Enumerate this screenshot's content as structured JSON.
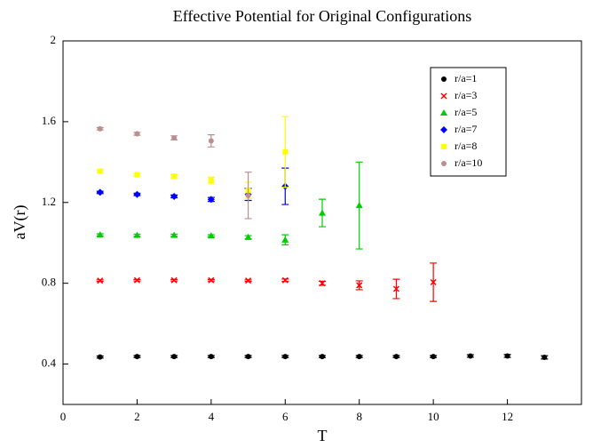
{
  "chart_data": {
    "type": "scatter",
    "title": "Effective Potential for Original Configurations",
    "x_label": "T",
    "y_label": "aV(r)",
    "xlim": [
      0,
      14
    ],
    "xticks": [
      0,
      2,
      4,
      6,
      8,
      10,
      12
    ],
    "ylim": [
      0.2,
      2
    ],
    "yticks": [
      0.4,
      0.8,
      1.2,
      1.6,
      2
    ],
    "legend_position": "upper right",
    "series": [
      {
        "name": "r/a=1",
        "color": "#000000",
        "marker": "circle",
        "x": [
          1,
          2,
          3,
          4,
          5,
          6,
          7,
          8,
          9,
          10,
          11,
          12,
          13
        ],
        "values": [
          0.435,
          0.437,
          0.437,
          0.437,
          0.437,
          0.437,
          0.437,
          0.437,
          0.437,
          0.437,
          0.44,
          0.44,
          0.433
        ],
        "errors": [
          0.005,
          0.005,
          0.005,
          0.005,
          0.005,
          0.005,
          0.005,
          0.005,
          0.005,
          0.005,
          0.006,
          0.007,
          0.008
        ]
      },
      {
        "name": "r/a=3",
        "color": "#ff0000",
        "marker": "x",
        "x": [
          1,
          2,
          3,
          4,
          5,
          6,
          7,
          8,
          9,
          10
        ],
        "values": [
          0.813,
          0.815,
          0.815,
          0.815,
          0.813,
          0.815,
          0.8,
          0.79,
          0.772,
          0.805
        ],
        "errors": [
          0.004,
          0.004,
          0.004,
          0.004,
          0.004,
          0.006,
          0.01,
          0.022,
          0.048,
          0.095
        ]
      },
      {
        "name": "r/a=5",
        "color": "#00cc00",
        "marker": "triangle",
        "x": [
          1,
          2,
          3,
          4,
          5,
          6,
          7,
          8
        ],
        "values": [
          1.04,
          1.038,
          1.038,
          1.035,
          1.028,
          1.015,
          1.148,
          1.185
        ],
        "errors": [
          0.005,
          0.005,
          0.005,
          0.005,
          0.008,
          0.025,
          0.068,
          0.215
        ]
      },
      {
        "name": "r/a=7",
        "color": "#0000ff",
        "marker": "diamond",
        "x": [
          1,
          2,
          3,
          4,
          5,
          6
        ],
        "values": [
          1.25,
          1.24,
          1.23,
          1.215,
          1.24,
          1.28
        ],
        "errors": [
          0.006,
          0.006,
          0.007,
          0.01,
          0.03,
          0.09
        ]
      },
      {
        "name": "r/a=8",
        "color": "#ffff00",
        "marker": "square",
        "x": [
          1,
          2,
          3,
          4,
          5,
          6
        ],
        "values": [
          1.355,
          1.337,
          1.33,
          1.31,
          1.26,
          1.45
        ],
        "errors": [
          0.006,
          0.006,
          0.008,
          0.015,
          0.04,
          0.175
        ]
      },
      {
        "name": "r/a=10",
        "color": "#bc8f8f",
        "marker": "circle",
        "x": [
          1,
          2,
          3,
          4,
          5
        ],
        "values": [
          1.565,
          1.54,
          1.52,
          1.505,
          1.235
        ],
        "errors": [
          0.006,
          0.007,
          0.01,
          0.03,
          0.115
        ]
      }
    ]
  }
}
